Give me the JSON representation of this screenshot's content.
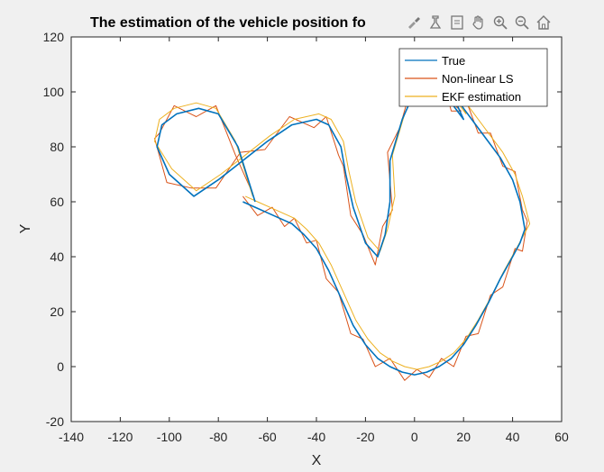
{
  "toolbar": {
    "icons": [
      "brush-icon",
      "data-tips-icon",
      "export-icon",
      "pan-hand-icon",
      "zoom-in-icon",
      "zoom-out-icon",
      "home-icon"
    ]
  },
  "chart_data": {
    "type": "line",
    "title": "The estimation of the vehicle position fo",
    "xlabel": "X",
    "ylabel": "Y",
    "xlim": [
      -140,
      60
    ],
    "ylim": [
      -20,
      120
    ],
    "xticks": [
      -140,
      -120,
      -100,
      -80,
      -60,
      -40,
      -20,
      0,
      20,
      40,
      60
    ],
    "yticks": [
      -20,
      0,
      20,
      40,
      60,
      80,
      100,
      120
    ],
    "grid": false,
    "legend_position": "top-right",
    "series": [
      {
        "name": "True",
        "color": "#0072BD",
        "x": [
          -70,
          -65,
          -60,
          -55,
          -50,
          -45,
          -40,
          -35,
          -30,
          -25,
          -20,
          -15,
          -10,
          -5,
          0,
          5,
          10,
          15,
          20,
          25,
          30,
          35,
          40,
          43,
          45,
          43,
          40,
          35,
          30,
          25,
          20,
          15,
          10,
          15,
          20,
          15,
          10,
          5,
          0,
          -5,
          -10,
          -10,
          -12,
          -15,
          -20,
          -25,
          -28,
          -30,
          -35,
          -40,
          -50,
          -60,
          -70,
          -80,
          -90,
          -100,
          -105,
          -103,
          -97,
          -88,
          -80,
          -72,
          -65
        ],
        "y": [
          60,
          58,
          56,
          54,
          52,
          48,
          43,
          35,
          25,
          15,
          8,
          3,
          0,
          -2,
          -3,
          -2,
          0,
          3,
          8,
          15,
          23,
          32,
          40,
          45,
          50,
          60,
          68,
          76,
          82,
          88,
          94,
          100,
          103,
          96,
          90,
          100,
          104,
          103,
          100,
          90,
          75,
          60,
          48,
          40,
          45,
          58,
          70,
          80,
          88,
          90,
          88,
          82,
          75,
          68,
          62,
          70,
          80,
          88,
          92,
          94,
          92,
          80,
          60
        ]
      },
      {
        "name": "Non-linear LS",
        "color": "#D95319",
        "x": [
          -70,
          -64,
          -58,
          -53,
          -49,
          -44,
          -40,
          -36,
          -31,
          -26,
          -21,
          -16,
          -10,
          -4,
          1,
          6,
          11,
          16,
          21,
          26,
          31,
          36,
          41,
          44,
          46,
          44,
          41,
          36,
          31,
          26,
          21,
          16,
          11,
          15,
          19,
          14,
          9,
          4,
          -1,
          -6,
          -11,
          -9,
          -13,
          -16,
          -21,
          -26,
          -29,
          -31,
          -36,
          -41,
          -51,
          -61,
          -71,
          -81,
          -91,
          -101,
          -106,
          -104,
          -98,
          -89,
          -81,
          -73,
          -66
        ],
        "y": [
          62,
          55,
          58,
          51,
          54,
          45,
          46,
          32,
          27,
          12,
          10,
          0,
          3,
          -5,
          -1,
          -4,
          3,
          0,
          11,
          12,
          26,
          29,
          43,
          42,
          53,
          57,
          71,
          73,
          85,
          85,
          97,
          97,
          106,
          93,
          93,
          97,
          107,
          100,
          103,
          87,
          78,
          57,
          51,
          37,
          48,
          55,
          73,
          77,
          91,
          87,
          91,
          79,
          78,
          65,
          65,
          67,
          83,
          85,
          95,
          91,
          95,
          77,
          63
        ]
      },
      {
        "name": "EKF estimation",
        "color": "#EDB120",
        "x": [
          -69,
          -64,
          -59,
          -54,
          -49,
          -44,
          -39,
          -34,
          -29,
          -24,
          -19,
          -14,
          -9,
          -4,
          1,
          6,
          11,
          16,
          21,
          26,
          31,
          36,
          41,
          44,
          47,
          44,
          41,
          36,
          31,
          26,
          21,
          16,
          11,
          16,
          21,
          16,
          11,
          6,
          1,
          -4,
          -9,
          -8,
          -11,
          -14,
          -19,
          -24,
          -27,
          -29,
          -34,
          -39,
          -49,
          -59,
          -69,
          -79,
          -89,
          -99,
          -106,
          -104,
          -98,
          -89,
          -81,
          -73,
          -66
        ],
        "y": [
          62,
          60,
          58,
          56,
          54,
          50,
          45,
          37,
          27,
          17,
          10,
          5,
          2,
          0,
          -1,
          0,
          2,
          5,
          10,
          17,
          25,
          34,
          42,
          47,
          52,
          62,
          70,
          78,
          84,
          90,
          96,
          102,
          105,
          98,
          92,
          102,
          106,
          105,
          102,
          92,
          77,
          62,
          50,
          42,
          47,
          60,
          72,
          82,
          90,
          92,
          90,
          84,
          77,
          70,
          64,
          72,
          82,
          90,
          94,
          96,
          94,
          82,
          62
        ]
      }
    ]
  }
}
